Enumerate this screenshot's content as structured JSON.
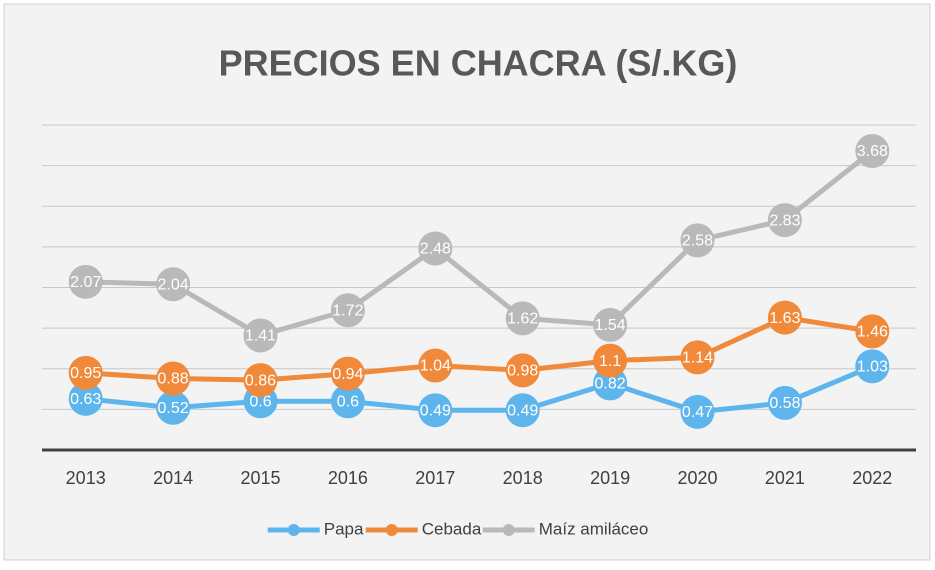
{
  "chart_data": {
    "type": "line",
    "title": "PRECIOS EN CHACRA (S/.KG)",
    "categories": [
      "2013",
      "2014",
      "2015",
      "2016",
      "2017",
      "2018",
      "2019",
      "2020",
      "2021",
      "2022"
    ],
    "series": [
      {
        "name": "Papa",
        "color": "#5db5ec",
        "values": [
          0.63,
          0.52,
          0.6,
          0.6,
          0.49,
          0.49,
          0.82,
          0.47,
          0.58,
          1.03
        ]
      },
      {
        "name": "Cebada",
        "color": "#f08a3a",
        "values": [
          0.95,
          0.88,
          0.86,
          0.94,
          1.04,
          0.98,
          1.1,
          1.14,
          1.63,
          1.46
        ]
      },
      {
        "name": "Maíz amiláceo",
        "color": "#b9b9b9",
        "values": [
          2.07,
          2.04,
          1.41,
          1.72,
          2.48,
          1.62,
          1.54,
          2.58,
          2.83,
          3.68
        ]
      }
    ],
    "ylim": [
      0,
      4
    ],
    "yticks": [
      0,
      0.5,
      1,
      1.5,
      2,
      2.5,
      3,
      3.5,
      4
    ],
    "grid": true,
    "legend": "bottom"
  }
}
